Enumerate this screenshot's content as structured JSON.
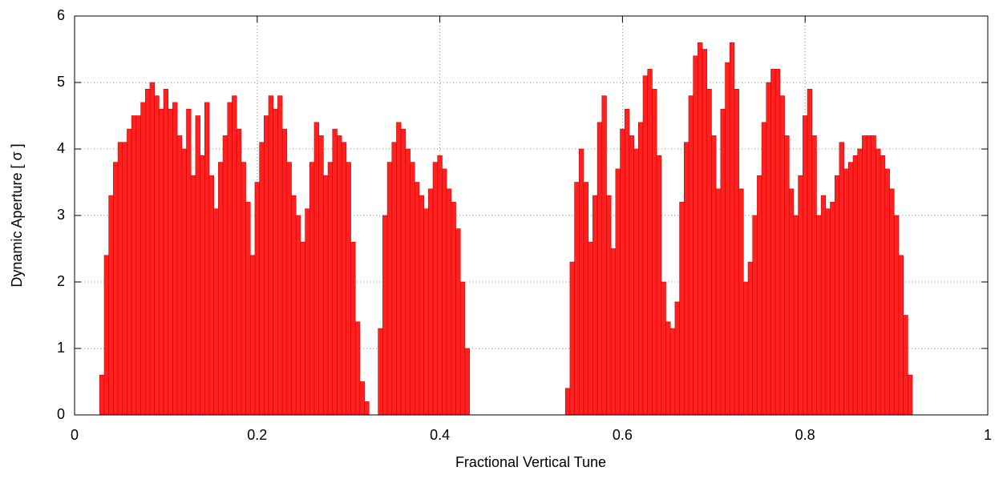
{
  "chart_data": {
    "type": "bar",
    "x_label": "Fractional Vertical Tune",
    "y_label": "Dynamic Aperture [ σ ]",
    "color": "#ff2020",
    "grid": true,
    "xlim": [
      0,
      1
    ],
    "xticks": [
      0,
      0.2,
      0.4,
      0.6,
      0.8,
      1
    ],
    "ylim": [
      0,
      6
    ],
    "yticks": [
      0,
      1,
      2,
      3,
      4,
      5,
      6
    ],
    "x": [
      0.03,
      0.035,
      0.04,
      0.045,
      0.05,
      0.055,
      0.06,
      0.065,
      0.07,
      0.075,
      0.08,
      0.085,
      0.09,
      0.095,
      0.1,
      0.105,
      0.11,
      0.115,
      0.12,
      0.125,
      0.13,
      0.135,
      0.14,
      0.145,
      0.15,
      0.155,
      0.16,
      0.165,
      0.17,
      0.175,
      0.18,
      0.185,
      0.19,
      0.195,
      0.2,
      0.205,
      0.21,
      0.215,
      0.22,
      0.225,
      0.23,
      0.235,
      0.24,
      0.245,
      0.25,
      0.255,
      0.26,
      0.265,
      0.27,
      0.275,
      0.28,
      0.285,
      0.29,
      0.295,
      0.3,
      0.305,
      0.31,
      0.315,
      0.32,
      0.335,
      0.34,
      0.345,
      0.35,
      0.355,
      0.36,
      0.365,
      0.37,
      0.375,
      0.38,
      0.385,
      0.39,
      0.395,
      0.4,
      0.405,
      0.41,
      0.415,
      0.42,
      0.425,
      0.43,
      0.54,
      0.545,
      0.55,
      0.555,
      0.56,
      0.565,
      0.57,
      0.575,
      0.58,
      0.585,
      0.59,
      0.595,
      0.6,
      0.605,
      0.61,
      0.615,
      0.62,
      0.625,
      0.63,
      0.635,
      0.64,
      0.645,
      0.65,
      0.655,
      0.66,
      0.665,
      0.67,
      0.675,
      0.68,
      0.685,
      0.69,
      0.695,
      0.7,
      0.705,
      0.71,
      0.715,
      0.72,
      0.725,
      0.73,
      0.735,
      0.74,
      0.745,
      0.75,
      0.755,
      0.76,
      0.765,
      0.77,
      0.775,
      0.78,
      0.785,
      0.79,
      0.795,
      0.8,
      0.805,
      0.81,
      0.815,
      0.82,
      0.825,
      0.83,
      0.835,
      0.84,
      0.845,
      0.85,
      0.855,
      0.86,
      0.865,
      0.87,
      0.875,
      0.88,
      0.885,
      0.89,
      0.895,
      0.9,
      0.905,
      0.91,
      0.915
    ],
    "values": [
      0.6,
      2.4,
      3.3,
      3.8,
      4.1,
      4.1,
      4.3,
      4.5,
      4.5,
      4.7,
      4.9,
      5.0,
      4.8,
      4.6,
      4.9,
      4.6,
      4.7,
      4.2,
      4.0,
      4.6,
      3.6,
      4.5,
      3.9,
      4.7,
      3.6,
      3.1,
      3.8,
      4.2,
      4.7,
      4.8,
      4.3,
      3.8,
      3.2,
      2.4,
      3.5,
      4.1,
      4.5,
      4.8,
      4.6,
      4.8,
      4.3,
      3.8,
      3.3,
      3.0,
      2.6,
      3.1,
      3.8,
      4.4,
      4.2,
      3.6,
      3.8,
      4.3,
      4.2,
      4.1,
      3.8,
      2.6,
      1.4,
      0.5,
      0.2,
      1.3,
      3.0,
      3.8,
      4.1,
      4.4,
      4.3,
      4.0,
      3.8,
      3.5,
      3.3,
      3.1,
      3.4,
      3.8,
      3.9,
      3.7,
      3.4,
      3.2,
      2.8,
      2.0,
      1.0,
      0.4,
      2.3,
      3.5,
      4.0,
      3.5,
      2.6,
      3.3,
      4.4,
      4.8,
      3.3,
      2.5,
      3.7,
      4.3,
      4.6,
      4.2,
      4.0,
      4.4,
      5.1,
      5.2,
      4.9,
      3.9,
      2.0,
      1.4,
      1.3,
      1.7,
      3.2,
      4.1,
      4.8,
      5.4,
      5.6,
      5.5,
      4.9,
      4.2,
      3.4,
      4.6,
      5.3,
      5.6,
      4.9,
      3.4,
      2.0,
      2.3,
      3.0,
      3.6,
      4.4,
      5.0,
      5.2,
      5.2,
      4.8,
      4.2,
      3.4,
      3.0,
      3.6,
      4.5,
      4.9,
      4.2,
      3.0,
      3.3,
      3.1,
      3.2,
      3.6,
      4.1,
      3.7,
      3.8,
      3.9,
      4.0,
      4.2,
      4.2,
      4.2,
      4.0,
      3.9,
      3.7,
      3.4,
      3.0,
      2.4,
      1.5,
      0.6
    ]
  }
}
